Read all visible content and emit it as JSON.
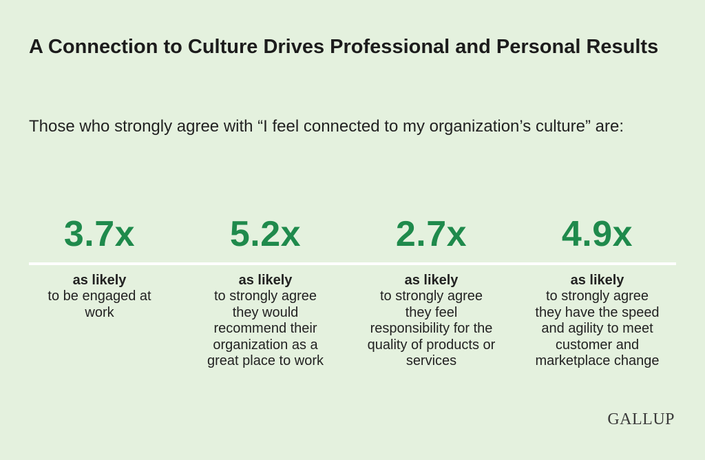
{
  "title": "A Connection to Culture Drives Professional and Personal Results",
  "subtitle": "Those who strongly agree with “I feel connected to my organization’s culture” are:",
  "stats": [
    {
      "value": "3.7x",
      "label": "as likely",
      "desc": "to be engaged at work"
    },
    {
      "value": "5.2x",
      "label": "as likely",
      "desc": "to strongly agree they would recommend their organization as a great place to work"
    },
    {
      "value": "2.7x",
      "label": "as likely",
      "desc": "to strongly agree they feel responsibility for the quality of products or services"
    },
    {
      "value": "4.9x",
      "label": "as likely",
      "desc": "to strongly agree they have the speed and agility to meet customer and marketplace change"
    }
  ],
  "logo": "GALLUP",
  "colors": {
    "background": "#e4f1de",
    "accent": "#1f8a4c",
    "divider": "#ffffff",
    "text": "#1c1c1c"
  }
}
